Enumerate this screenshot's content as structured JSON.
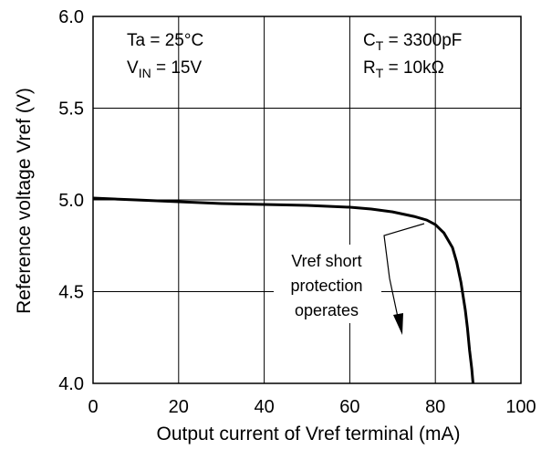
{
  "chart_data": {
    "type": "line",
    "title": "",
    "xlabel": "Output current of Vref terminal (mA)",
    "ylabel": "Reference voltage  Vref (V)",
    "xlim": [
      0,
      100
    ],
    "ylim": [
      4.0,
      6.0
    ],
    "grid": true,
    "x_ticks": [
      "0",
      "20",
      "40",
      "60",
      "80",
      "100"
    ],
    "y_ticks": [
      "4.0",
      "4.5",
      "5.0",
      "5.5",
      "6.0"
    ],
    "series": [
      {
        "x": [
          0,
          10,
          20,
          30,
          40,
          50,
          60,
          65,
          70,
          75,
          78,
          80,
          82,
          84,
          85,
          86,
          87,
          87.5,
          88,
          88.5,
          88.8
        ],
        "y": [
          5.01,
          5.0,
          4.99,
          4.98,
          4.975,
          4.97,
          4.96,
          4.95,
          4.935,
          4.91,
          4.89,
          4.865,
          4.82,
          4.74,
          4.66,
          4.55,
          4.4,
          4.3,
          4.18,
          4.08,
          4.0
        ]
      }
    ],
    "conditions_left": {
      "ta": "Ta = 25°C",
      "vin_main": "V",
      "vin_sub": "IN",
      "vin_rest": " = 15V"
    },
    "conditions_right": {
      "ct_main": "C",
      "ct_sub": "T",
      "ct_rest": " = 3300pF",
      "rt_main": "R",
      "rt_sub": "T",
      "rt_rest": " = 10kΩ"
    },
    "annotation": {
      "line1": "Vref short",
      "line2": "protection",
      "line3": "operates"
    }
  }
}
